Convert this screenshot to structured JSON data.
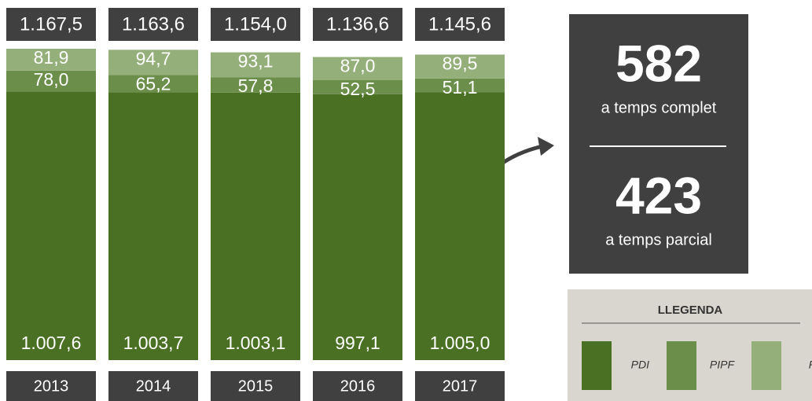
{
  "chart_data": {
    "type": "stacked_bar",
    "categories": [
      "2013",
      "2014",
      "2015",
      "2016",
      "2017"
    ],
    "series": [
      {
        "name": "PDI",
        "color": "#4a7024",
        "values": [
          1007.6,
          1003.7,
          1003.1,
          997.1,
          1005.0
        ],
        "value_labels": [
          "1.007,6",
          "1.003,7",
          "1.003,1",
          "997,1",
          "1.005,0"
        ]
      },
      {
        "name": "PIPF",
        "color": "#6c8e4b",
        "values": [
          78.0,
          65.2,
          57.8,
          52.5,
          51.1
        ],
        "value_labels": [
          "78,0",
          "65,2",
          "57,8",
          "52,5",
          "51,1"
        ]
      },
      {
        "name": "PI",
        "color": "#95af7b",
        "values": [
          81.9,
          94.7,
          93.1,
          87.0,
          89.5
        ],
        "value_labels": [
          "81,9",
          "94,7",
          "93,1",
          "87,0",
          "89,5"
        ]
      }
    ],
    "totals": [
      1167.5,
      1163.6,
      1154.0,
      1136.6,
      1145.6
    ],
    "total_labels": [
      "1.167,5",
      "1.163,6",
      "1.154,0",
      "1.136,6",
      "1.145,6"
    ],
    "annotations": [
      {
        "value": 582,
        "label": "a temps complet"
      },
      {
        "value": 423,
        "label": "a temps parcial"
      }
    ],
    "legend_title": "LLEGENDA"
  }
}
